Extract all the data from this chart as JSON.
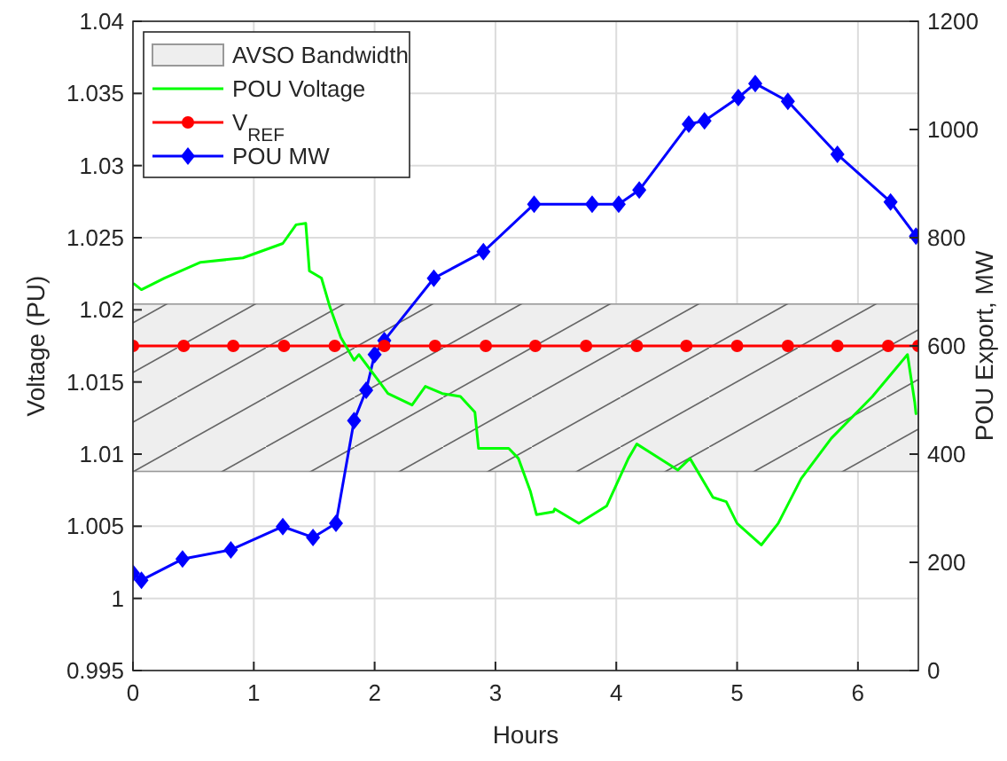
{
  "chart_data": {
    "type": "line",
    "xlabel": "Hours",
    "ylabel": "Voltage (PU)",
    "y2label": "POU Export, MW",
    "xlim": [
      0,
      6.5
    ],
    "xticks": [
      0,
      1,
      2,
      3,
      4,
      5,
      6
    ],
    "ylim": [
      0.995,
      1.04
    ],
    "yticks": [
      0.995,
      {
        "value": 1,
        "label": "1"
      },
      1.005,
      1.01,
      1.015,
      1.02,
      1.025,
      1.03,
      1.035,
      1.04
    ],
    "y2lim": [
      0,
      1200
    ],
    "y2ticks": [
      0,
      200,
      400,
      600,
      800,
      1000,
      1200
    ],
    "grid": true,
    "legend": "top left",
    "bands": [
      {
        "axis": "y",
        "from": 1.0088,
        "to": 1.0204,
        "label": "AVSO Bandwidth",
        "color": "#eeeeee"
      }
    ],
    "series": [
      {
        "name": "POU Voltage",
        "color": "#00ff00",
        "marker": "none",
        "x": [
          0.01,
          0.07,
          0.26,
          0.56,
          0.91,
          1.24,
          1.35,
          1.43,
          1.46,
          1.56,
          1.63,
          1.72,
          1.83,
          1.87,
          2.04,
          2.11,
          2.31,
          2.42,
          2.56,
          2.71,
          2.83,
          2.86,
          3.11,
          3.19,
          3.29,
          3.34,
          3.48,
          3.49,
          3.69,
          3.92,
          4.1,
          4.17,
          4.51,
          4.61,
          4.8,
          4.91,
          5.0,
          5.2,
          5.34,
          5.53,
          5.78,
          6.12,
          6.41,
          6.47,
          6.48
        ],
        "values": [
          1.0218,
          1.0214,
          1.0222,
          1.0233,
          1.0236,
          1.0246,
          1.0259,
          1.026,
          1.0227,
          1.0222,
          1.0202,
          1.0181,
          1.0165,
          1.0169,
          1.015,
          1.0142,
          1.0134,
          1.0147,
          1.0142,
          1.014,
          1.0129,
          1.0104,
          1.0104,
          1.0097,
          1.0074,
          1.0058,
          1.006,
          1.0062,
          1.0052,
          1.0064,
          1.0097,
          1.0107,
          1.0089,
          1.0097,
          1.007,
          1.0067,
          1.0052,
          1.0037,
          1.0052,
          1.0083,
          1.0111,
          1.014,
          1.0169,
          1.0136,
          1.0128
        ]
      },
      {
        "name": "V$_{REF}$",
        "color": "#ff0000",
        "marker": "circle",
        "x": [
          0,
          0.42,
          0.83,
          1.25,
          1.67,
          2.08,
          2.5,
          2.92,
          3.33,
          3.75,
          4.17,
          4.58,
          5.0,
          5.42,
          5.83,
          6.25,
          6.5
        ],
        "values": [
          1.0175,
          1.0175,
          1.0175,
          1.0175,
          1.0175,
          1.0175,
          1.0175,
          1.0175,
          1.0175,
          1.0175,
          1.0175,
          1.0175,
          1.0175,
          1.0175,
          1.0175,
          1.0175,
          1.0175
        ]
      },
      {
        "name": "POU MW",
        "color": "#0000ff",
        "marker": "diamond",
        "axis": "y2",
        "x": [
          0,
          0.07,
          0.41,
          0.81,
          1.24,
          1.49,
          1.68,
          1.83,
          1.93,
          2.0,
          2.08,
          2.49,
          2.9,
          3.32,
          3.8,
          4.02,
          4.19,
          4.6,
          4.73,
          5.01,
          5.15,
          5.42,
          5.83,
          6.27,
          6.48
        ],
        "values": [
          180,
          167,
          206,
          223,
          266,
          246,
          272,
          462,
          518,
          584,
          610,
          725,
          774,
          862,
          862,
          862,
          888,
          1010,
          1016,
          1059,
          1085,
          1052,
          954,
          866,
          803
        ]
      }
    ]
  }
}
